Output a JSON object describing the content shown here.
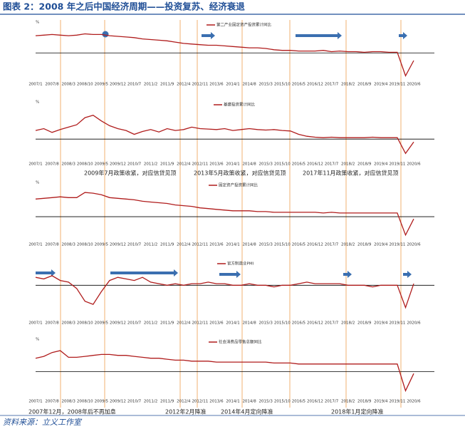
{
  "header": {
    "title": "图表 2：2008 年之后中国经济周期——投资复苏、经济衰退"
  },
  "footer": {
    "source": "资料来源：立义工作室"
  },
  "chart_data": [
    {
      "type": "line",
      "ylabel": "%",
      "legend": "top-center",
      "ylim": [
        -40,
        35
      ],
      "hline": 0,
      "categories": [
        "2007/1",
        null,
        "2007/8",
        null,
        "2008/3",
        null,
        "2008/10",
        null,
        "2009/5",
        null,
        "2009/12",
        null,
        "2010/7",
        null,
        "2011/2",
        null,
        "2011/9",
        null,
        "2012/4",
        null,
        "2012/11",
        null,
        "2013/6",
        null,
        "2014/1",
        null,
        "2014/8",
        null,
        "2015/3",
        null,
        "2015/10",
        null,
        "2016/5",
        null,
        "2016/12",
        null,
        "2017/7",
        null,
        "2018/2",
        null,
        "2018/9",
        null,
        "2019/4",
        null,
        "2019/11",
        null,
        "2020/6"
      ],
      "series": [
        {
          "name": "第二产业固定资产投资累计同比",
          "color": "#b01c1c",
          "values": [
            27,
            28,
            29,
            28,
            27,
            28,
            30,
            29,
            29,
            27,
            26,
            25,
            24,
            22,
            21,
            20,
            19,
            17,
            15,
            14,
            13,
            12,
            12,
            11,
            10,
            9,
            8,
            8,
            7,
            5,
            4,
            4,
            3,
            3,
            3,
            4,
            2,
            3,
            2,
            2,
            1,
            2,
            2,
            1,
            1,
            -36,
            -12
          ]
        }
      ]
    },
    {
      "type": "line",
      "ylabel": "%",
      "legend": "top-center",
      "ylim": [
        -40,
        60
      ],
      "hline": 0,
      "categories": [
        "2007/1",
        null,
        "2007/8",
        null,
        "2008/3",
        null,
        "2008/10",
        null,
        "2009/5",
        null,
        "2009/12",
        null,
        "2010/7",
        null,
        "2011/2",
        null,
        "2011/9",
        null,
        "2012/4",
        null,
        "2012/11",
        null,
        "2013/6",
        null,
        "2014/1",
        null,
        "2014/8",
        null,
        "2015/3",
        null,
        "2015/10",
        null,
        "2016/5",
        null,
        "2016/12",
        null,
        "2017/7",
        null,
        "2018/2",
        null,
        "2018/9",
        null,
        "2019/4",
        null,
        "2019/11",
        null,
        "2020/6"
      ],
      "series": [
        {
          "name": "基建投资累计同比",
          "color": "#b01c1c",
          "values": [
            18,
            22,
            14,
            20,
            25,
            30,
            45,
            50,
            38,
            28,
            22,
            18,
            10,
            16,
            20,
            15,
            22,
            18,
            20,
            25,
            22,
            21,
            20,
            22,
            18,
            20,
            22,
            20,
            19,
            20,
            18,
            17,
            10,
            6,
            4,
            3,
            4,
            3,
            3,
            3,
            3,
            4,
            3,
            3,
            3,
            -30,
            -6
          ]
        }
      ],
      "annotations": [
        "2009年7月政策收紧，对应信贷见顶",
        "2013年5月政策收紧，对应信贷见顶",
        "2017年11月政策收紧，对应信贷见顶"
      ]
    },
    {
      "type": "line",
      "ylabel": "%",
      "legend": "top-center",
      "ylim": [
        -30,
        35
      ],
      "hline": 0,
      "categories": [
        "2007/1",
        null,
        "2007/8",
        null,
        "2008/3",
        null,
        "2008/10",
        null,
        "2009/5",
        null,
        "2009/12",
        null,
        "2010/7",
        null,
        "2011/2",
        null,
        "2011/9",
        null,
        "2012/4",
        null,
        "2012/11",
        null,
        "2013/6",
        null,
        "2014/1",
        null,
        "2014/8",
        null,
        "2015/3",
        null,
        "2015/10",
        null,
        "2016/5",
        null,
        "2016/12",
        null,
        "2017/7",
        null,
        "2018/2",
        null,
        "2018/9",
        null,
        "2019/4",
        null,
        "2019/11",
        null,
        "2020/6"
      ],
      "series": [
        {
          "name": "固定资产投资累计同比",
          "color": "#b01c1c",
          "values": [
            24,
            25,
            26,
            27,
            26,
            26,
            33,
            32,
            30,
            26,
            25,
            24,
            23,
            21,
            20,
            19,
            18,
            16,
            15,
            14,
            12,
            11,
            10,
            9,
            8,
            8,
            8,
            7,
            7,
            6,
            6,
            6,
            6,
            6,
            6,
            5,
            6,
            5,
            5,
            5,
            5,
            5,
            5,
            5,
            5,
            -25,
            -3
          ]
        }
      ]
    },
    {
      "type": "line",
      "legend": "top-center",
      "ylim": [
        30,
        60
      ],
      "hline": 50,
      "categories": [
        "2007/1",
        null,
        "2007/8",
        null,
        "2008/3",
        null,
        "2008/10",
        null,
        "2009/5",
        null,
        "2009/12",
        null,
        "2010/7",
        null,
        "2011/2",
        null,
        "2011/9",
        null,
        "2012/4",
        null,
        "2012/11",
        null,
        "2013/6",
        null,
        "2014/1",
        null,
        "2014/8",
        null,
        "2015/3",
        null,
        "2015/10",
        null,
        "2016/5",
        null,
        "2016/12",
        null,
        "2017/7",
        null,
        "2018/2",
        null,
        "2018/9",
        null,
        "2019/4",
        null,
        "2019/11",
        null,
        "2020/6"
      ],
      "series": [
        {
          "name": "官方制造业PMI",
          "color": "#b01c1c",
          "values": [
            55,
            54,
            56,
            53,
            52,
            48,
            40,
            38,
            46,
            53,
            55,
            54,
            53,
            55,
            52,
            51,
            50,
            51,
            50,
            51,
            51,
            52,
            51,
            51,
            50,
            50,
            51,
            50,
            50,
            49,
            50,
            50,
            51,
            52,
            51,
            51,
            51,
            51,
            50,
            50,
            50,
            49,
            50,
            50,
            50,
            36,
            51
          ]
        }
      ]
    },
    {
      "type": "line",
      "ylabel": "%",
      "legend": "top-center",
      "ylim": [
        -25,
        25
      ],
      "hline": 0,
      "categories": [
        "2007/1",
        null,
        "2007/8",
        null,
        "2008/3",
        null,
        "2008/10",
        null,
        "2009/5",
        null,
        "2009/12",
        null,
        "2010/7",
        null,
        "2011/2",
        null,
        "2011/9",
        null,
        "2012/4",
        null,
        "2012/11",
        null,
        "2013/6",
        null,
        "2014/1",
        null,
        "2014/8",
        null,
        "2015/3",
        null,
        "2015/10",
        null,
        "2016/5",
        null,
        "2016/12",
        null,
        "2017/7",
        null,
        "2018/2",
        null,
        "2018/9",
        null,
        "2019/4",
        null,
        "2019/11",
        null,
        "2020/6"
      ],
      "series": [
        {
          "name": "社会消费品零售总额同比",
          "color": "#b01c1c",
          "values": [
            14,
            16,
            20,
            22,
            15,
            15,
            16,
            17,
            18,
            18,
            17,
            17,
            16,
            15,
            14,
            14,
            13,
            12,
            12,
            11,
            11,
            11,
            10,
            10,
            10,
            10,
            10,
            10,
            10,
            9,
            9,
            9,
            8,
            8,
            8,
            8,
            8,
            8,
            8,
            8,
            8,
            8,
            8,
            8,
            8,
            -20,
            -2
          ]
        }
      ],
      "annotations": [
        "2007年12月，2008年后不再加息",
        "2012年2月降准",
        "2014年4月定向降准",
        "2018年1月定向降准"
      ]
    }
  ]
}
